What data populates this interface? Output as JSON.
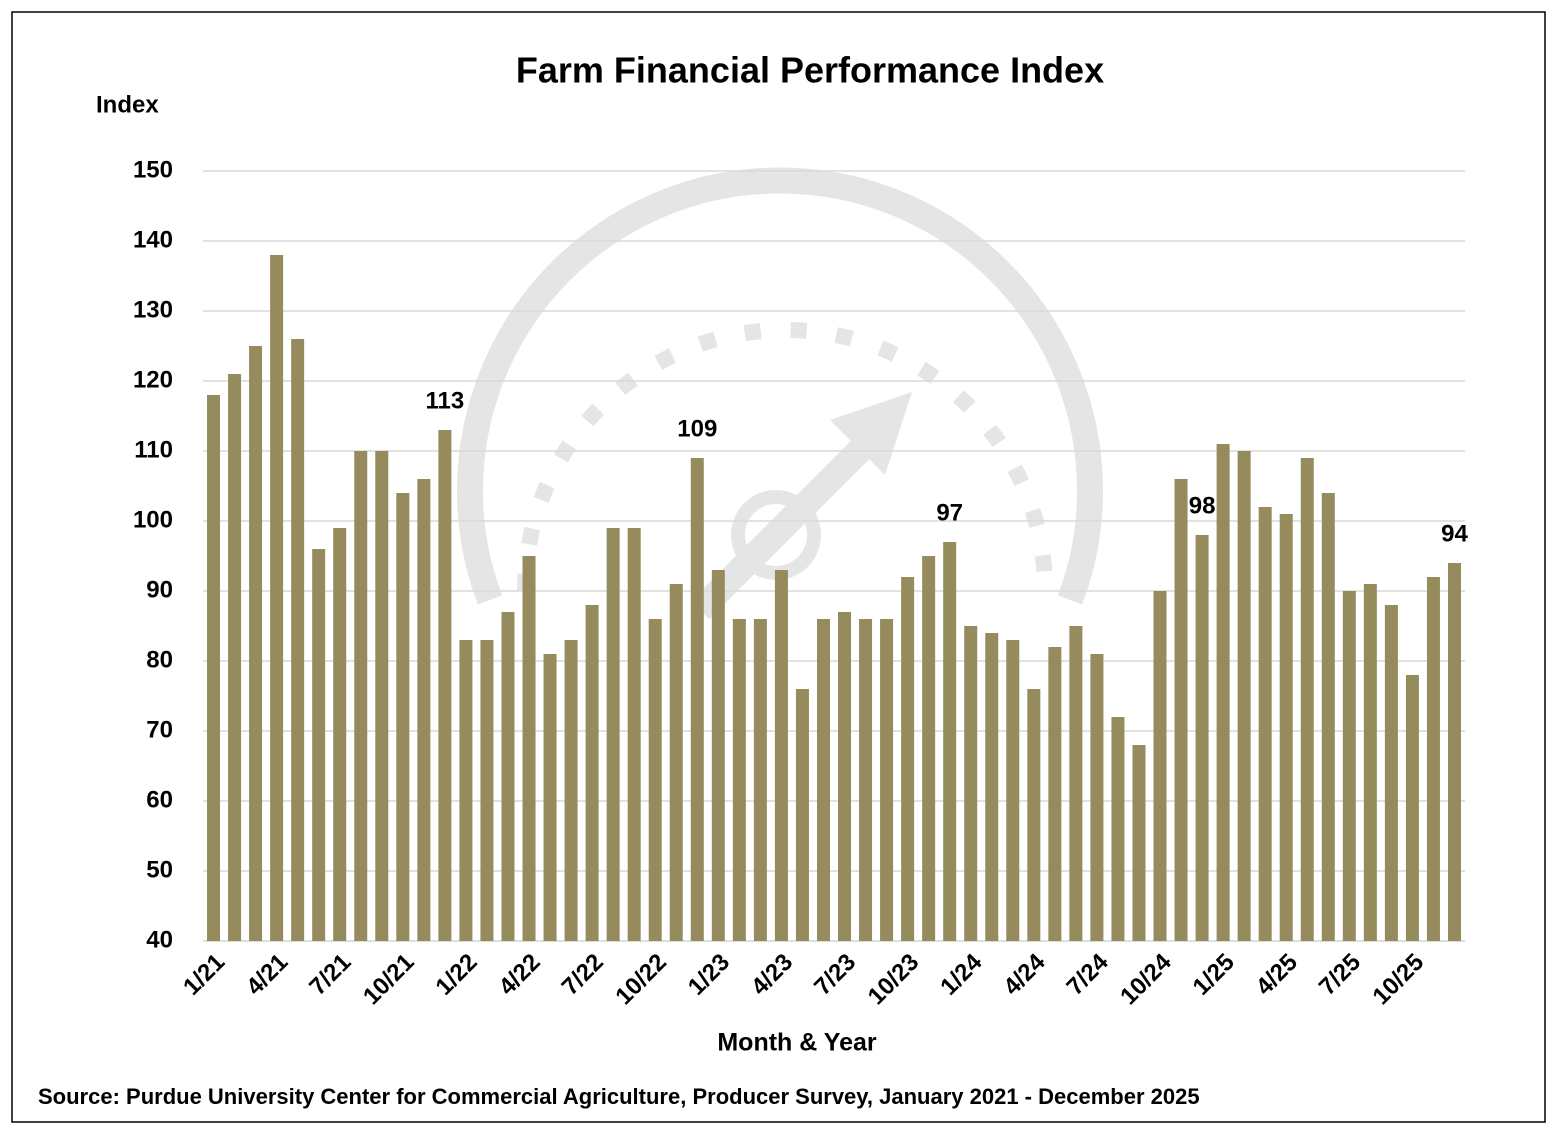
{
  "chart_data": {
    "type": "bar",
    "title": "Farm Financial Performance Index",
    "y_label": "Index",
    "x_label": "Month & Year",
    "source": "Source: Purdue University Center for Commercial Agriculture, Producer Survey, January 2021 - December 2025",
    "categories": [
      "1/21",
      null,
      null,
      "4/21",
      null,
      null,
      "7/21",
      null,
      null,
      "10/21",
      null,
      null,
      "1/22",
      null,
      null,
      "4/22",
      null,
      null,
      "7/22",
      null,
      null,
      "10/22",
      null,
      null,
      "1/23",
      null,
      null,
      "4/23",
      null,
      null,
      "7/23",
      null,
      null,
      "10/23",
      null,
      null,
      "1/24",
      null,
      null,
      "4/24",
      null,
      null,
      "7/24",
      null,
      null,
      "10/24",
      null,
      null,
      "1/25",
      null,
      null,
      "4/25",
      null,
      null,
      "7/25",
      null,
      null,
      "10/25",
      null,
      null
    ],
    "values": [
      118,
      121,
      125,
      138,
      126,
      96,
      99,
      110,
      110,
      104,
      106,
      113,
      83,
      83,
      87,
      95,
      81,
      83,
      88,
      99,
      99,
      86,
      91,
      109,
      93,
      86,
      86,
      93,
      76,
      86,
      87,
      86,
      86,
      92,
      95,
      97,
      85,
      84,
      83,
      76,
      82,
      85,
      81,
      72,
      68,
      90,
      106,
      98,
      111,
      110,
      102,
      101,
      109,
      104,
      90,
      91,
      88,
      78,
      92,
      94
    ],
    "value_labels": [
      null,
      null,
      null,
      null,
      null,
      null,
      null,
      null,
      null,
      null,
      null,
      "113",
      null,
      null,
      null,
      null,
      null,
      null,
      null,
      null,
      null,
      null,
      null,
      "109",
      null,
      null,
      null,
      null,
      null,
      null,
      null,
      null,
      null,
      null,
      null,
      "97",
      null,
      null,
      null,
      null,
      null,
      null,
      null,
      null,
      null,
      null,
      null,
      "98",
      null,
      null,
      null,
      null,
      null,
      null,
      null,
      null,
      null,
      null,
      null,
      "94"
    ],
    "color": "#958b5d",
    "ylim": [
      40,
      150
    ],
    "yticks": [
      40,
      50,
      60,
      70,
      80,
      90,
      100,
      110,
      120,
      130,
      140,
      150
    ],
    "grid": true
  }
}
